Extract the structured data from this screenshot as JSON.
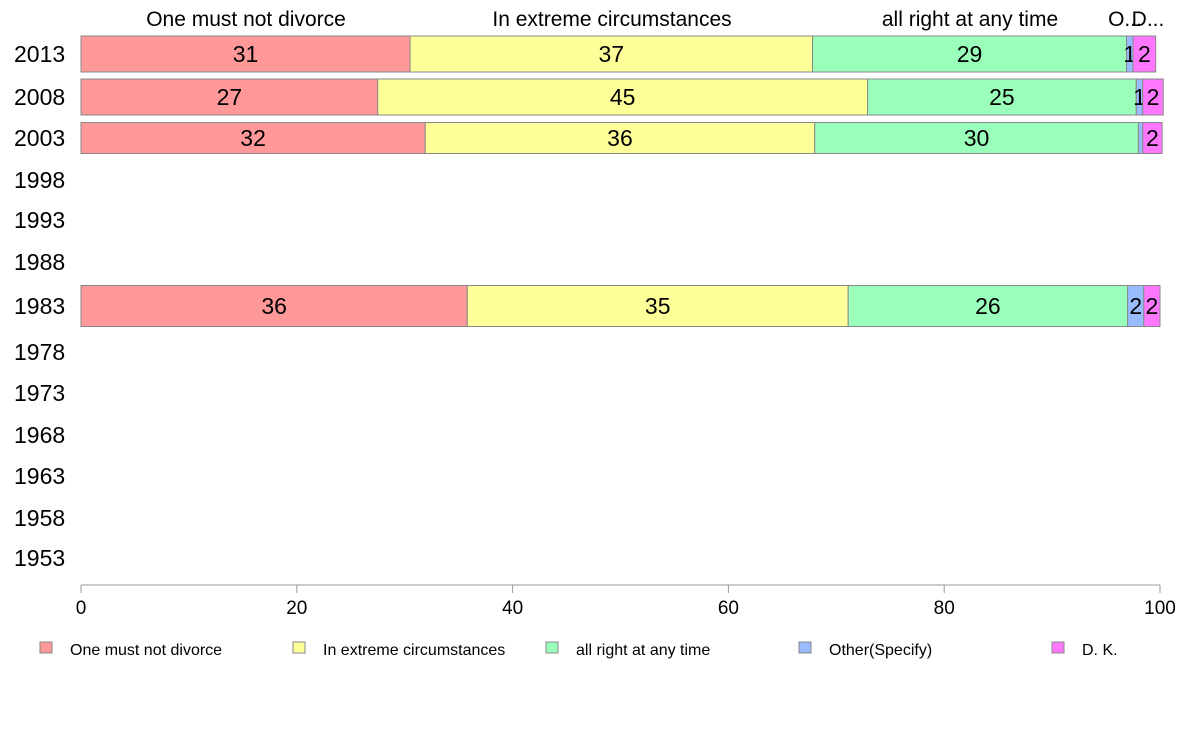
{
  "chart_data": {
    "type": "bar",
    "orientation": "horizontal-stacked",
    "categories": [
      "2013",
      "2008",
      "2003",
      "1998",
      "1993",
      "1988",
      "1983",
      "1978",
      "1973",
      "1968",
      "1963",
      "1958",
      "1953"
    ],
    "series": [
      {
        "name": "One must not divorce",
        "color": "#ff9999",
        "values": [
          30.5,
          27.5,
          31.9,
          null,
          null,
          null,
          35.8,
          null,
          null,
          null,
          null,
          null,
          null
        ],
        "labels": [
          "31",
          "27",
          "32",
          "",
          "",
          "",
          "36",
          "",
          "",
          "",
          "",
          "",
          ""
        ]
      },
      {
        "name": "In extreme circumstances",
        "color": "#ffff99",
        "values": [
          37.3,
          45.4,
          36.1,
          null,
          null,
          null,
          35.3,
          null,
          null,
          null,
          null,
          null,
          null
        ],
        "labels": [
          "37",
          "45",
          "36",
          "",
          "",
          "",
          "35",
          "",
          "",
          "",
          "",
          "",
          ""
        ]
      },
      {
        "name": "all right at any time",
        "color": "#99ffbb",
        "values": [
          29.1,
          24.9,
          30.0,
          null,
          null,
          null,
          25.9,
          null,
          null,
          null,
          null,
          null,
          null
        ],
        "labels": [
          "29",
          "25",
          "30",
          "",
          "",
          "",
          "26",
          "",
          "",
          "",
          "",
          "",
          ""
        ]
      },
      {
        "name": "Other(Specify)",
        "color": "#99bbff",
        "values": [
          0.6,
          0.6,
          0.4,
          null,
          null,
          null,
          1.5,
          null,
          null,
          null,
          null,
          null,
          null
        ],
        "labels": [
          "1",
          "1",
          "",
          "",
          "",
          "",
          "2",
          "",
          "",
          "",
          "",
          "",
          ""
        ]
      },
      {
        "name": "D. K.",
        "color": "#ff77ff",
        "values": [
          2.1,
          1.9,
          1.8,
          null,
          null,
          null,
          1.5,
          null,
          null,
          null,
          null,
          null,
          null
        ],
        "labels": [
          "2",
          "2",
          "2",
          "",
          "",
          "",
          "2",
          "",
          "",
          "",
          "",
          "",
          ""
        ]
      }
    ],
    "column_headers": [
      "One must not divorce",
      "In extreme circumstances",
      "all right at any time",
      "O...",
      "D..."
    ],
    "xlim": [
      0,
      100
    ],
    "xticks": [
      "0",
      "20",
      "40",
      "60",
      "80",
      "100"
    ],
    "grid": false,
    "legend_position": "bottom"
  }
}
